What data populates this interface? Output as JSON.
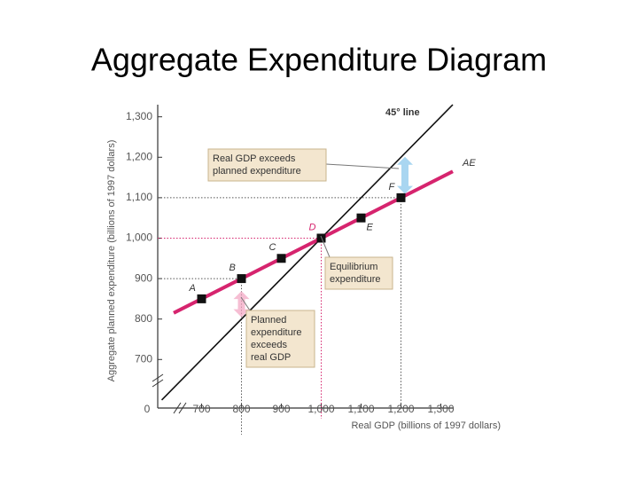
{
  "chart_data": {
    "type": "line",
    "title": "Aggregate Expenditure Diagram",
    "xlabel": "Real GDP (billions of 1997 dollars)",
    "ylabel": "Aggregate planned expenditure (billions of 1997 dollars)",
    "origin_label": "0",
    "xlim": [
      590,
      1330
    ],
    "ylim": [
      580,
      1330
    ],
    "xticks": [
      700,
      800,
      900,
      {
        "value": 1000,
        "label": "1,000"
      },
      {
        "value": 1100,
        "label": "1,100"
      },
      {
        "value": 1200,
        "label": "1,200"
      },
      {
        "value": 1300,
        "label": "1,300"
      }
    ],
    "yticks": [
      700,
      800,
      900,
      {
        "value": 1000,
        "label": "1,000"
      },
      {
        "value": 1100,
        "label": "1,100"
      },
      {
        "value": 1200,
        "label": "1,200"
      },
      {
        "value": 1300,
        "label": "1,300"
      }
    ],
    "series": [
      {
        "name": "45° line",
        "color": "#111111",
        "x": [
          600,
          1330
        ],
        "values": [
          600,
          1330
        ]
      },
      {
        "name": "AE",
        "color": "#d6246e",
        "x": [
          630,
          1330
        ],
        "values": [
          815,
          1165
        ]
      }
    ],
    "points": {
      "labels": [
        "A",
        "B",
        "C",
        "D",
        "E",
        "F"
      ],
      "label_colors": [
        "#333333",
        "#333333",
        "#333333",
        "#d6246e",
        "#333333",
        "#333333"
      ],
      "color": "#111111",
      "x": [
        700,
        800,
        900,
        1000,
        1100,
        1200
      ],
      "values": [
        850,
        900,
        950,
        1000,
        1050,
        1100
      ]
    },
    "annotations": [
      [
        "Real GDP exceeds",
        "planned expenditure"
      ],
      [
        "Equilibrium",
        "expenditure"
      ],
      [
        "Planned",
        "expenditure",
        "exceeds",
        "real GDP"
      ]
    ]
  }
}
